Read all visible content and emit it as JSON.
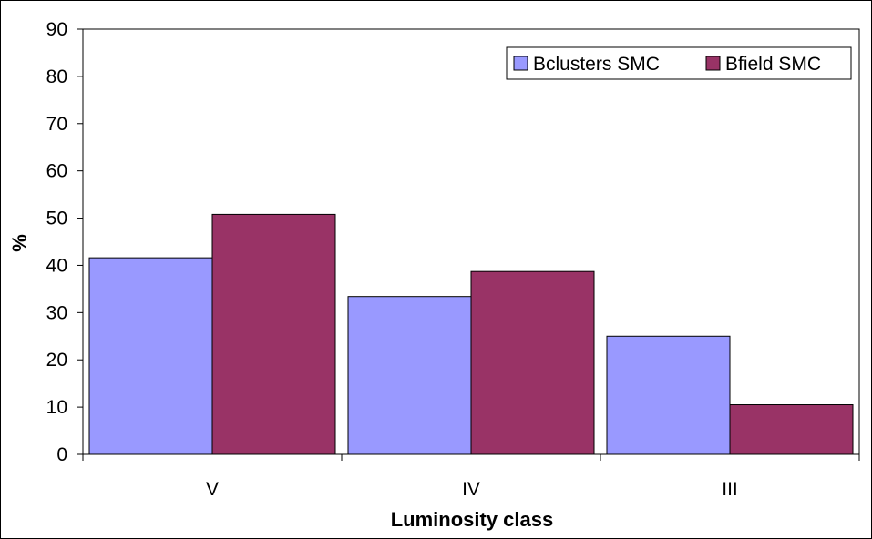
{
  "chart_data": {
    "type": "bar",
    "categories": [
      "V",
      "IV",
      "III"
    ],
    "series": [
      {
        "name": "Bclusters SMC",
        "values": [
          41.6,
          33.4,
          25.0
        ],
        "color": "#9999ff"
      },
      {
        "name": "Bfield SMC",
        "values": [
          50.8,
          38.7,
          10.5
        ],
        "color": "#993366"
      }
    ],
    "xlabel": "Luminosity class",
    "ylabel": "%",
    "ylim": [
      0,
      90
    ],
    "yticks": [
      0,
      10,
      20,
      30,
      40,
      50,
      60,
      70,
      80,
      90
    ],
    "grid": false,
    "legend_position": "top-right"
  }
}
